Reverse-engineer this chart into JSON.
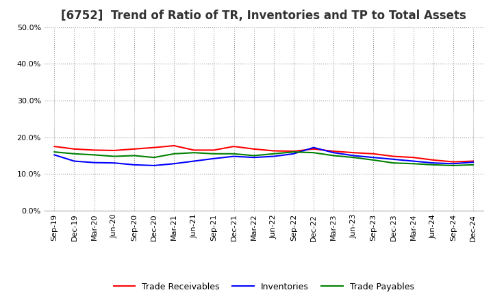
{
  "title": "[6752]  Trend of Ratio of TR, Inventories and TP to Total Assets",
  "xlabels": [
    "Sep-19",
    "Dec-19",
    "Mar-20",
    "Jun-20",
    "Sep-20",
    "Dec-20",
    "Mar-21",
    "Jun-21",
    "Sep-21",
    "Dec-21",
    "Mar-22",
    "Jun-22",
    "Sep-22",
    "Dec-22",
    "Mar-23",
    "Jun-23",
    "Sep-23",
    "Dec-23",
    "Mar-24",
    "Jun-24",
    "Sep-24",
    "Dec-24"
  ],
  "trade_receivables": [
    17.5,
    16.8,
    16.5,
    16.4,
    16.8,
    17.2,
    17.7,
    16.5,
    16.5,
    17.5,
    16.8,
    16.3,
    16.2,
    16.8,
    16.2,
    15.8,
    15.5,
    14.8,
    14.5,
    13.8,
    13.3,
    13.5
  ],
  "inventories": [
    15.2,
    13.5,
    13.1,
    13.0,
    12.5,
    12.3,
    12.8,
    13.5,
    14.2,
    14.8,
    14.5,
    14.8,
    15.5,
    17.2,
    15.8,
    15.0,
    14.5,
    14.0,
    13.5,
    13.0,
    12.8,
    13.2
  ],
  "trade_payables": [
    16.0,
    15.5,
    15.2,
    14.8,
    15.0,
    14.5,
    15.5,
    15.8,
    15.5,
    15.5,
    15.0,
    15.5,
    16.0,
    15.8,
    15.0,
    14.5,
    13.8,
    13.0,
    12.8,
    12.5,
    12.3,
    12.5
  ],
  "ylim": [
    0.0,
    50.0
  ],
  "yticks": [
    0.0,
    10.0,
    20.0,
    30.0,
    40.0,
    50.0
  ],
  "color_tr": "#FF0000",
  "color_inv": "#0000FF",
  "color_tp": "#008000",
  "background_color": "#FFFFFF",
  "plot_bg_color": "#FFFFFF",
  "grid_color": "#999999",
  "legend_labels": [
    "Trade Receivables",
    "Inventories",
    "Trade Payables"
  ],
  "title_fontsize": 12,
  "tick_fontsize": 8,
  "legend_fontsize": 9
}
